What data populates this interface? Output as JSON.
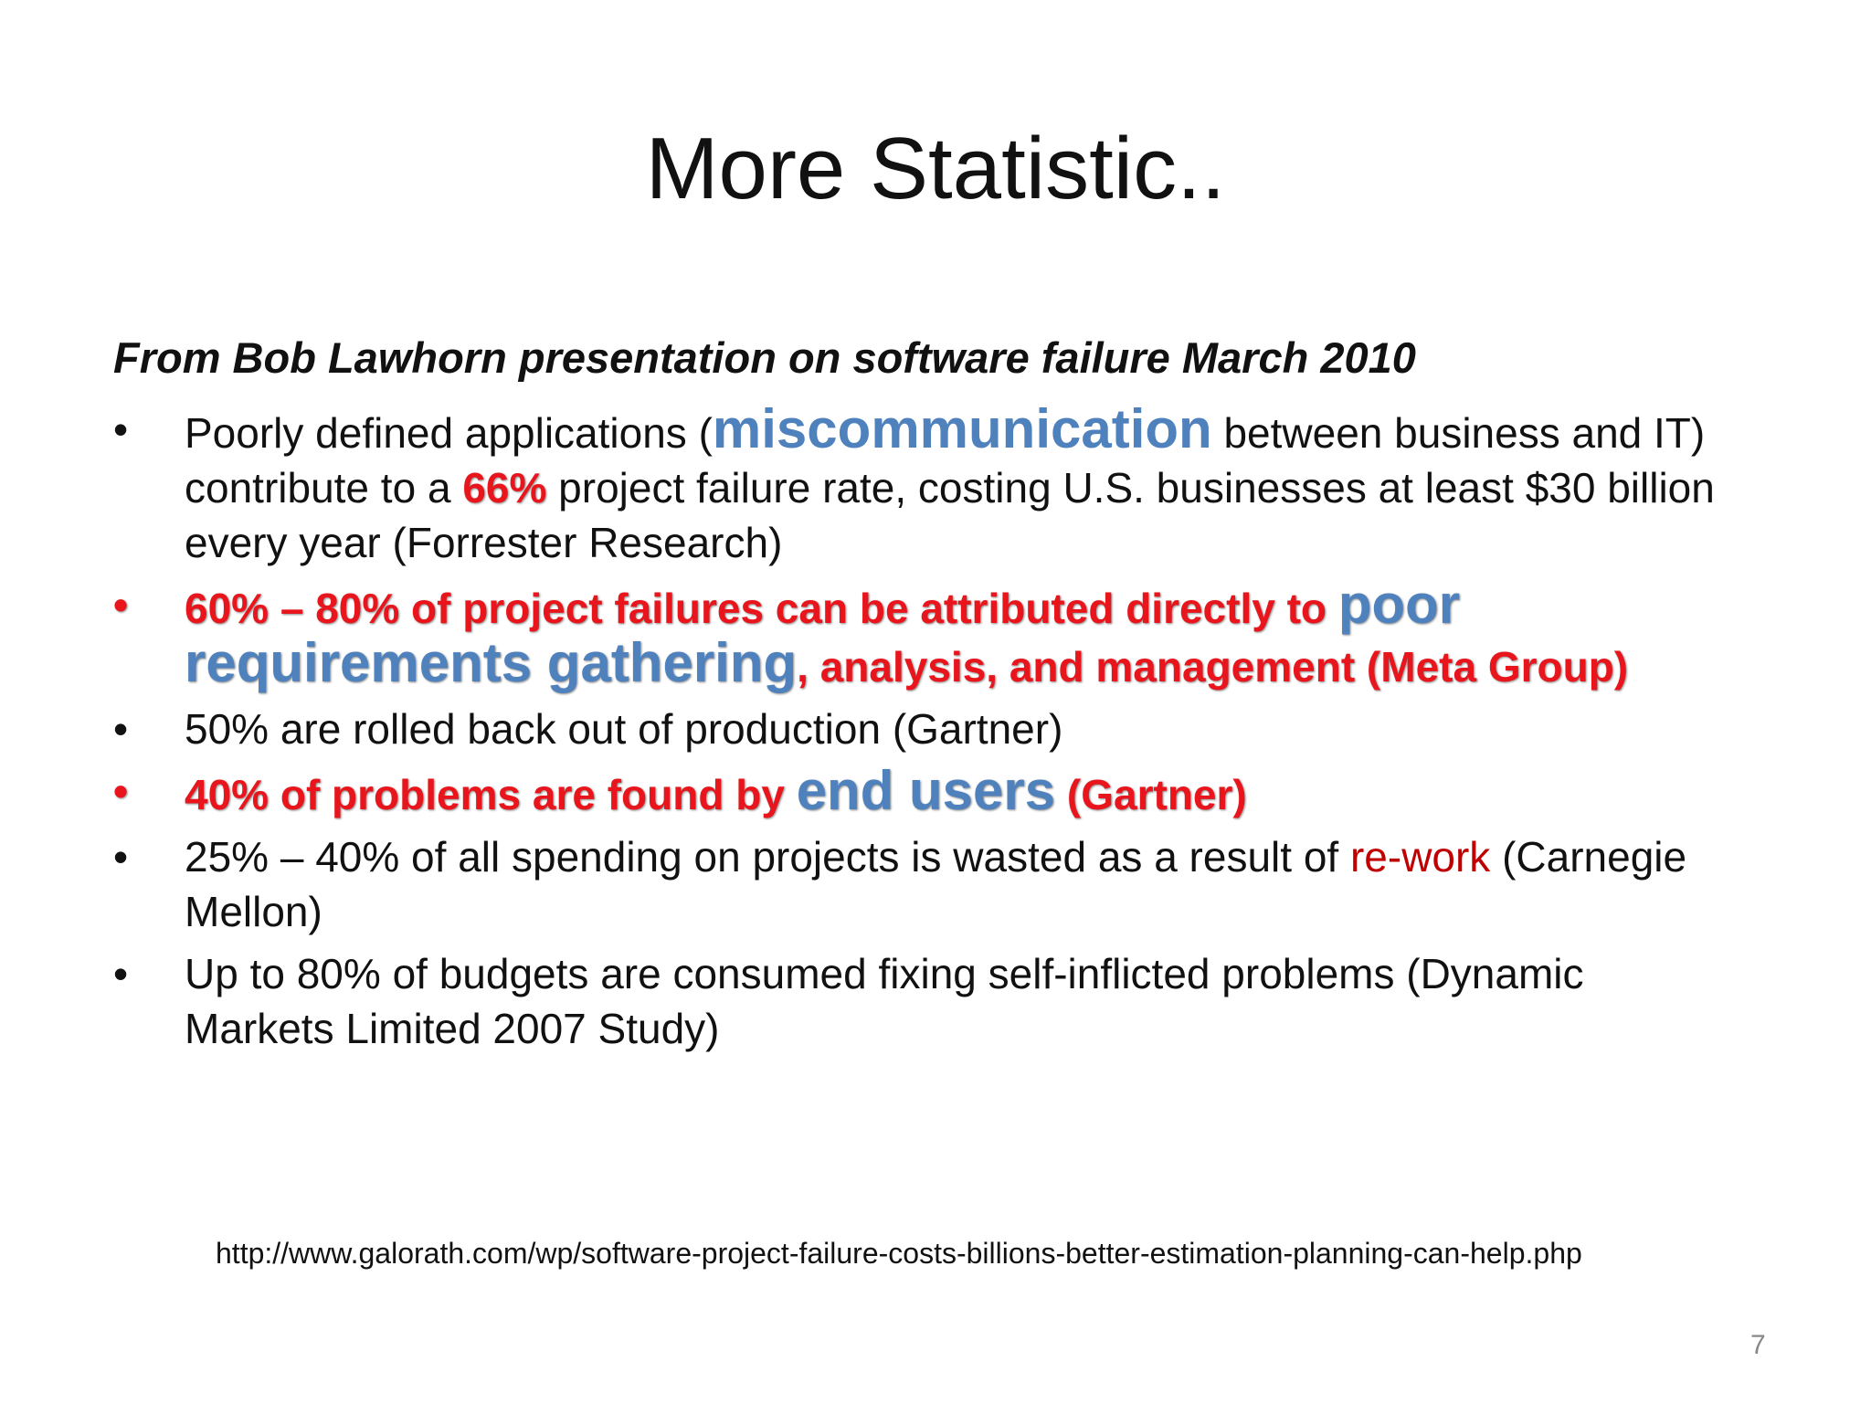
{
  "title": "More Statistic..",
  "subtitle": "From Bob Lawhorn presentation on software failure March 2010",
  "bullets": [
    {
      "runs": [
        "Poorly defined applications (",
        "miscommunication",
        " between business and IT) contribute to a ",
        "66%",
        " project failure rate, costing U.S. businesses at least $30 billion every year (Forrester Research)"
      ]
    },
    {
      "runs": [
        "60% – 80%",
        " of project failures can be attributed directly to ",
        "poor requirements gathering",
        ", analysis, and management (Meta Group)"
      ]
    },
    {
      "runs": [
        "50% are rolled back out of production (Gartner)"
      ]
    },
    {
      "runs": [
        "40%",
        " of problems are found by ",
        "end users",
        " (Gartner)"
      ]
    },
    {
      "runs": [
        "25% – 40% of all spending on projects is wasted as a result of ",
        "re-work",
        " (Carnegie Mellon)"
      ]
    },
    {
      "runs": [
        "Up to 80% of budgets are consumed fixing self-inflicted problems (Dynamic Markets Limited 2007 Study)"
      ]
    }
  ],
  "source": "http://www.galorath.com/wp/software-project-failure-costs-billions-better-estimation-planning-can-help.php",
  "page_number": "7"
}
